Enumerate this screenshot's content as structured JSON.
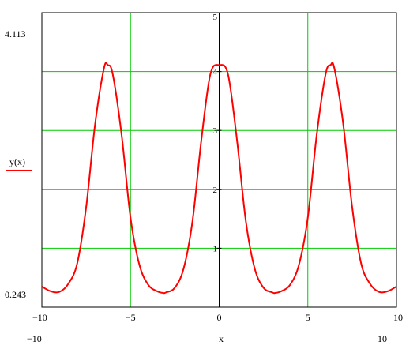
{
  "chart_data": {
    "type": "line",
    "title": "",
    "xlabel": "x",
    "ylabel": "y(x)",
    "xlim": [
      -10,
      10
    ],
    "ylim": [
      0,
      5
    ],
    "x_range_labels": {
      "min": "−10",
      "max": "10"
    },
    "y_range_labels": {
      "max": "4.113",
      "min": "0.243"
    },
    "x_ticks": [
      -10,
      -5,
      0,
      5,
      10
    ],
    "y_ticks": [
      1,
      2,
      3,
      4,
      5
    ],
    "grid": true,
    "series": [
      {
        "name": "y(x)",
        "color": "#ff0000",
        "x": [
          -10,
          -9.5,
          -9,
          -8.5,
          -8,
          -7.5,
          -7,
          -6.5,
          -6.28,
          -6,
          -5.5,
          -5,
          -4.5,
          -4,
          -3.5,
          -3.14,
          -3,
          -2.5,
          -2,
          -1.5,
          -1,
          -0.5,
          0,
          0.5,
          1,
          1.5,
          2,
          2.5,
          3,
          3.14,
          3.5,
          4,
          4.5,
          5,
          5.5,
          6,
          6.28,
          6.5,
          7,
          7.5,
          8,
          8.5,
          9,
          9.5,
          10
        ],
        "y": [
          0.35,
          0.27,
          0.26,
          0.4,
          0.75,
          1.7,
          3.1,
          4.05,
          4.11,
          3.95,
          2.92,
          1.52,
          0.72,
          0.38,
          0.27,
          0.24,
          0.25,
          0.33,
          0.66,
          1.47,
          2.85,
          3.95,
          4.11,
          3.95,
          2.85,
          1.47,
          0.66,
          0.33,
          0.25,
          0.24,
          0.27,
          0.38,
          0.72,
          1.52,
          2.92,
          3.95,
          4.11,
          4.05,
          3.1,
          1.7,
          0.75,
          0.4,
          0.26,
          0.27,
          0.35
        ]
      }
    ],
    "colors": {
      "grid": "#00cc00",
      "axis": "#000000",
      "frame": "#000000",
      "curve": "#ff0000"
    }
  }
}
